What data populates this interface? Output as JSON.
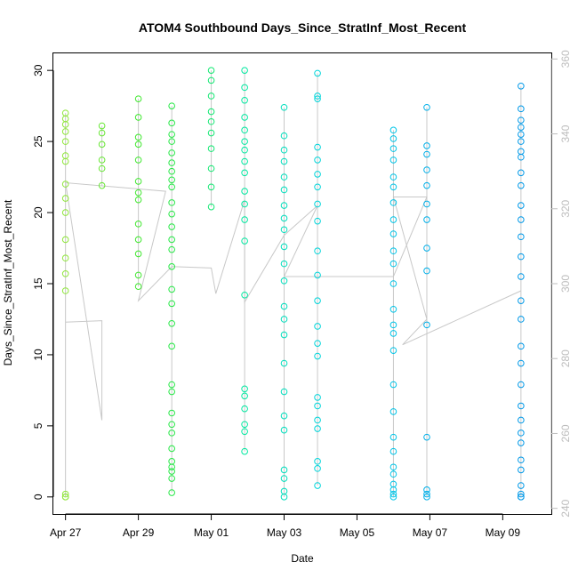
{
  "chart_data": {
    "type": "scatter",
    "title": "ATOM4 Southbound Days_Since_StratInf_Most_Recent",
    "xlabel": "Date",
    "ylabel": "Days_Since_StratInf_Most_Recent",
    "x_ticks": [
      "Apr 27",
      "Apr 29",
      "May 01",
      "May 03",
      "May 05",
      "May 07",
      "May 09"
    ],
    "y_ticks": [
      0,
      5,
      10,
      15,
      20,
      25,
      30
    ],
    "y2_ticks": [
      240,
      260,
      280,
      300,
      320,
      340,
      360
    ],
    "xlim": [
      "2016-04-26T16:00",
      "2016-05-10T08:00"
    ],
    "ylim": [
      -1.2,
      31.2
    ],
    "y2lim": [
      238.5,
      361.5
    ],
    "colors": {
      "line": "#c8c8c8",
      "axis": "#000000",
      "right_axis": "#bdbdbd",
      "gradient": [
        "#8fe63a",
        "#2ee82e",
        "#00e8a0",
        "#00d0e8",
        "#0099e8"
      ]
    },
    "point_clusters": [
      {
        "date": "2016-04-27",
        "values": [
          0,
          0,
          0.2,
          14.5,
          15.7,
          16.8,
          18.1,
          20,
          21,
          22,
          23.6,
          24,
          25,
          25.7,
          26.2,
          26.6,
          27
        ]
      },
      {
        "date": "2016-04-28",
        "values": [
          21.9,
          23.1,
          23.7,
          24.8,
          25.6,
          26.1
        ]
      },
      {
        "date": "2016-04-29",
        "values": [
          14.8,
          15.6,
          17.1,
          18.1,
          19.2,
          20.9,
          21.4,
          22.2,
          23.7,
          24.8,
          25.3,
          26.7,
          28
        ]
      },
      {
        "date": "2016-04-29T22:00",
        "values": [
          0.3,
          1.3,
          1.8,
          2.1,
          2.5,
          3.4,
          4.5,
          5.1,
          5.9,
          7.4,
          7.9,
          10.6,
          12.2,
          13.6,
          14.6,
          16.2,
          17.4,
          18.1,
          19,
          19.9,
          20.7,
          21.8,
          22.3,
          22.9,
          23.5,
          24.2,
          25,
          25.5,
          26.3,
          27.5
        ]
      },
      {
        "date": "2016-05-01",
        "values": [
          20.4,
          21.8,
          23.1,
          24.5,
          25.6,
          26.4,
          27.1,
          28.2,
          29.3,
          30
        ]
      },
      {
        "date": "2016-05-01T22:00",
        "values": [
          3.2,
          4.6,
          5.1,
          6.2,
          7.1,
          7.6,
          14.2,
          18,
          19.5,
          20.6,
          21.5,
          22.8,
          23.6,
          24.4,
          25,
          25.8,
          26.7,
          27.9,
          28.8,
          30
        ]
      },
      {
        "date": "2016-05-03",
        "values": [
          0,
          0.4,
          1.3,
          1.9,
          4.7,
          5.7,
          7.4,
          9.4,
          11.4,
          12.5,
          13.4,
          15.2,
          16.4,
          17.6,
          18.8,
          19.6,
          20.5,
          21.6,
          22.5,
          23.6,
          24.4,
          25.4,
          27.4
        ]
      },
      {
        "date": "2016-05-03T22:00",
        "values": [
          0.8,
          2,
          2.5,
          4.8,
          5.4,
          6.4,
          7,
          9.9,
          10.8,
          12,
          13.8,
          15.6,
          17.3,
          19.4,
          20.6,
          21.8,
          22.7,
          23.7,
          24.6,
          28,
          28.2,
          29.8
        ]
      },
      {
        "date": "2016-05-06",
        "values": [
          0,
          0.2,
          0.5,
          0.9,
          1.6,
          2.1,
          3.2,
          4.2,
          6,
          7.9,
          10.3,
          11.5,
          12.1,
          13.2,
          15,
          16.4,
          17.3,
          18.5,
          19.5,
          20.7,
          21.8,
          22.5,
          23.7,
          24.5,
          25.2,
          25.8
        ]
      },
      {
        "date": "2016-05-06T22:00",
        "values": [
          0,
          0.2,
          0.5,
          4.2,
          12.1,
          15.9,
          17.5,
          19.5,
          20.6,
          21.9,
          23,
          24.1,
          24.7,
          27.4
        ]
      },
      {
        "date": "2016-05-09T12:00",
        "values": [
          0,
          0,
          0.2,
          0.8,
          1.9,
          2.6,
          3.8,
          4.5,
          5.4,
          6.4,
          7.9,
          9.4,
          10.6,
          12.5,
          13.8,
          15.5,
          16.9,
          18.3,
          19.5,
          20.5,
          21.9,
          22.8,
          23.9,
          24.3,
          25,
          25.5,
          26,
          26.5,
          27.3,
          28.9
        ]
      }
    ],
    "line_path": [
      {
        "date": "2016-04-27",
        "value": 12.3
      },
      {
        "date": "2016-04-28",
        "value": 12.4
      },
      {
        "date": "2016-04-28",
        "value": 5.4
      },
      {
        "date": "2016-04-27",
        "value": 22.1
      },
      {
        "date": "2016-04-29T18:00",
        "value": 21.5
      },
      {
        "date": "2016-04-29",
        "value": 13.8
      },
      {
        "date": "2016-04-29T22:00",
        "value": 16.2
      },
      {
        "date": "2016-05-01",
        "value": 16.1
      },
      {
        "date": "2016-05-01T03:00",
        "value": 14.3
      },
      {
        "date": "2016-05-01T22:00",
        "value": 20.9
      },
      {
        "date": "2016-05-01T22:00",
        "value": 13.7
      },
      {
        "date": "2016-05-03",
        "value": 18.4
      },
      {
        "date": "2016-05-03T22:00",
        "value": 20.5
      },
      {
        "date": "2016-05-03",
        "value": 15.5
      },
      {
        "date": "2016-05-06",
        "value": 15.5
      },
      {
        "date": "2016-05-06T22:00",
        "value": 21.1
      },
      {
        "date": "2016-05-06",
        "value": 21.1
      },
      {
        "date": "2016-05-06T22:00",
        "value": 12.5
      },
      {
        "date": "2016-05-06T06:00",
        "value": 10.7
      },
      {
        "date": "2016-05-09T12:00",
        "value": 14.5
      }
    ]
  }
}
